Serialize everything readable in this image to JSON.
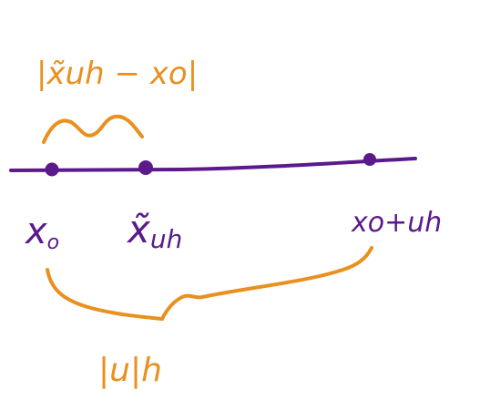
{
  "colors": {
    "line": "#5b1a8c",
    "annotation": "#e9901f",
    "background": "#ffffff"
  },
  "points": {
    "x0": {
      "base": "x",
      "subscript": "o"
    },
    "x_tilde": {
      "base": "x̃",
      "subscript": "uh"
    },
    "x0_plus_uh": {
      "text": "xo+uh"
    }
  },
  "annotations": {
    "top_brace_label": "|x̃uh − xo|",
    "bottom_brace_label": "|u|h"
  }
}
